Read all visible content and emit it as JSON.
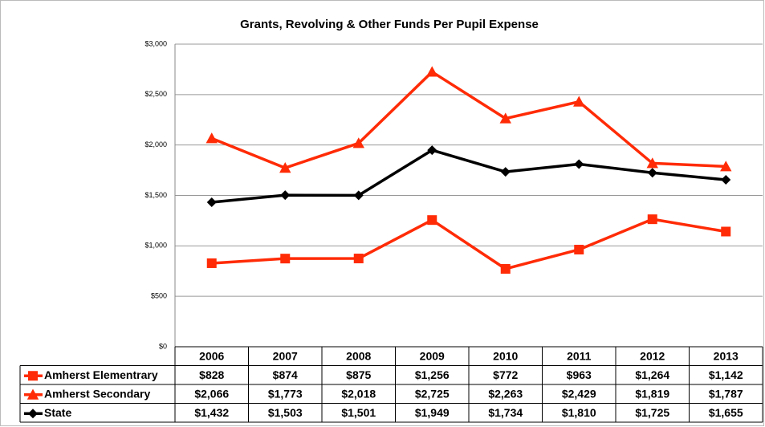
{
  "chart_data": {
    "type": "line",
    "title": "Grants, Revolving & Other Funds Per Pupil Expense",
    "categories": [
      "2006",
      "2007",
      "2008",
      "2009",
      "2010",
      "2011",
      "2012",
      "2013"
    ],
    "series": [
      {
        "name": "Amherst Elementrary",
        "color": "#ff2b06",
        "marker": "square",
        "values": [
          828,
          874,
          875,
          1256,
          772,
          963,
          1264,
          1142
        ],
        "value_labels": [
          "$828",
          "$874",
          "$875",
          "$1,256",
          "$772",
          "$963",
          "$1,264",
          "$1,142"
        ]
      },
      {
        "name": "Amherst Secondary",
        "color": "#ff2b06",
        "marker": "triangle",
        "values": [
          2066,
          1773,
          2018,
          2725,
          2263,
          2429,
          1819,
          1787
        ],
        "value_labels": [
          "$2,066",
          "$1,773",
          "$2,018",
          "$2,725",
          "$2,263",
          "$2,429",
          "$1,819",
          "$1,787"
        ]
      },
      {
        "name": "State",
        "color": "#000000",
        "marker": "diamond",
        "values": [
          1432,
          1503,
          1501,
          1949,
          1734,
          1810,
          1725,
          1655
        ],
        "value_labels": [
          "$1,432",
          "$1,503",
          "$1,501",
          "$1,949",
          "$1,734",
          "$1,810",
          "$1,725",
          "$1,655"
        ]
      }
    ],
    "ylim": [
      0,
      3000
    ],
    "yticks": [
      {
        "value": 0,
        "label": "$0"
      },
      {
        "value": 500,
        "label": "$500"
      },
      {
        "value": 1000,
        "label": "$1,000"
      },
      {
        "value": 1500,
        "label": "$1,500"
      },
      {
        "value": 2000,
        "label": "$2,000"
      },
      {
        "value": 2500,
        "label": "$2,500"
      },
      {
        "value": 3000,
        "label": "$3,000"
      }
    ],
    "grid": true
  }
}
